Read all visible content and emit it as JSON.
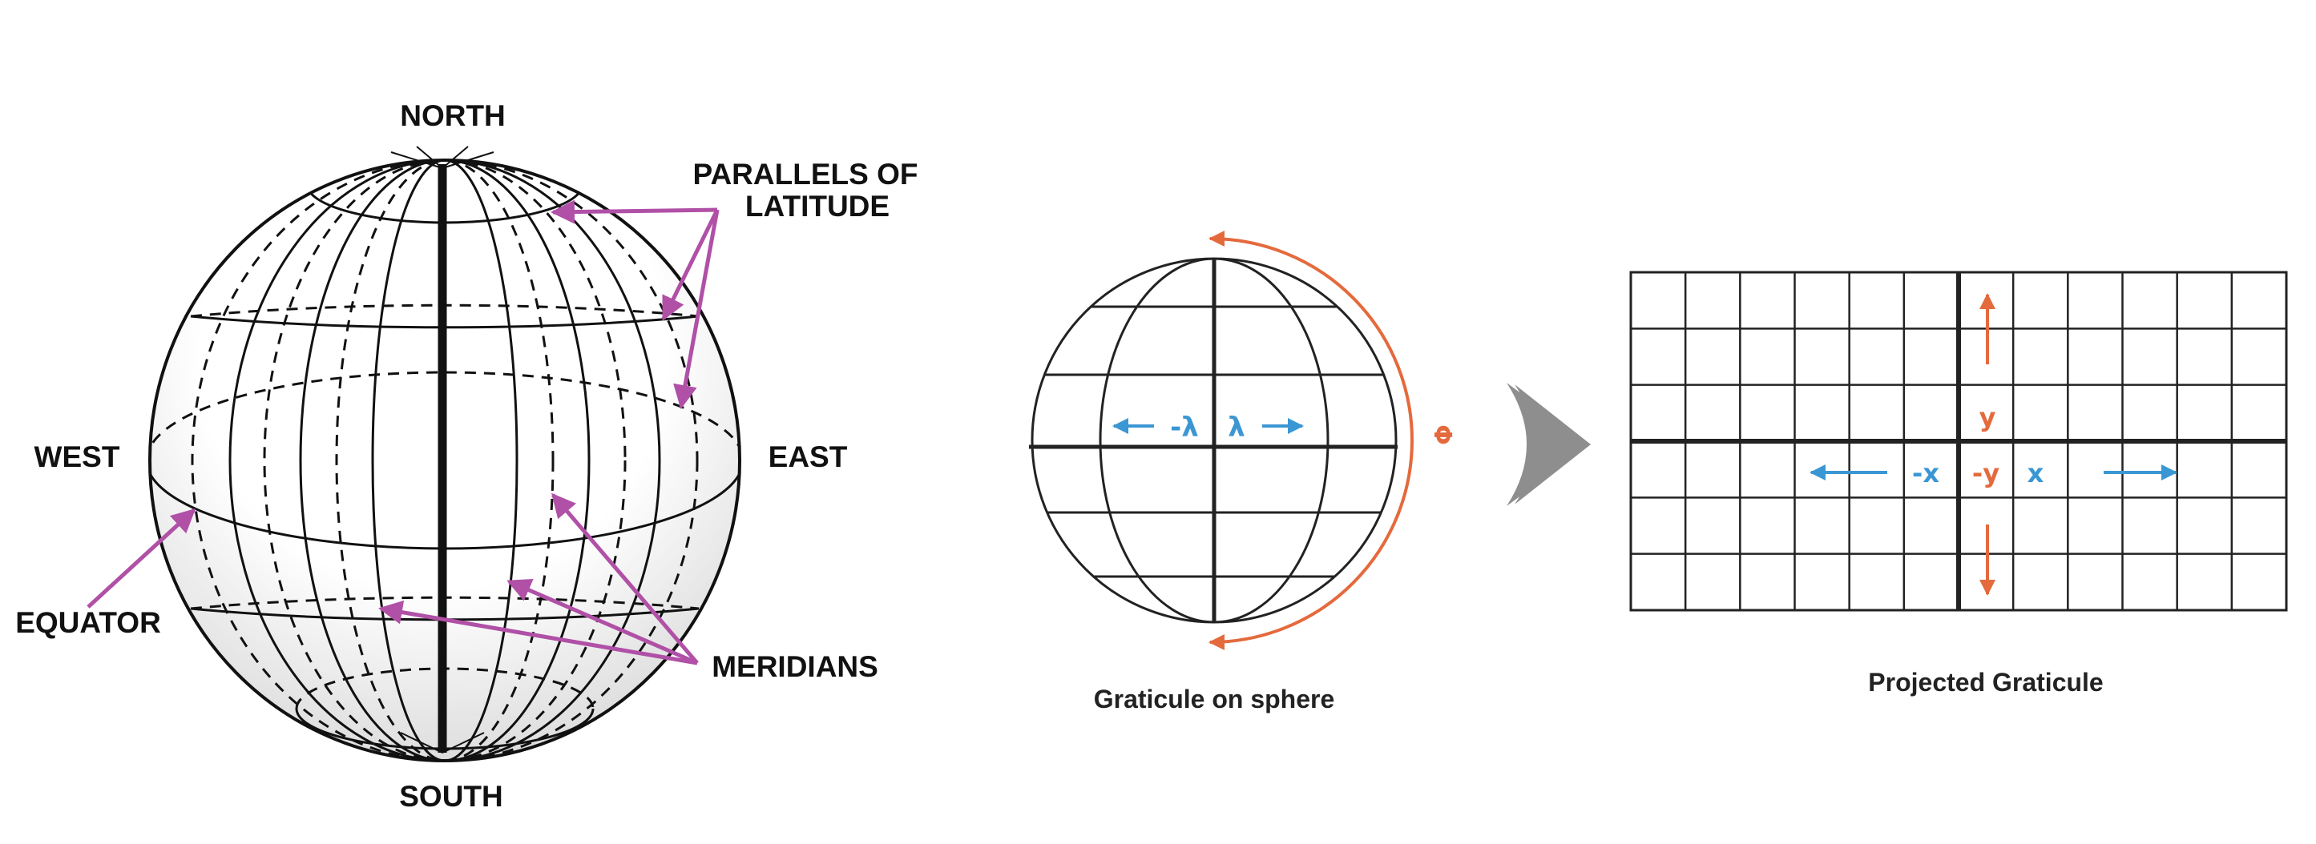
{
  "globe": {
    "north": "NORTH",
    "south": "SOUTH",
    "west": "WEST",
    "east": "EAST",
    "equator": "EQUATOR",
    "parallels_line1": "PARALLELS OF",
    "parallels_line2": "LATITUDE",
    "meridians": "MERIDIANS"
  },
  "sphere": {
    "caption": "Graticule on sphere",
    "neg_lambda": "-λ",
    "lambda": "λ",
    "phi": "Φ"
  },
  "projected": {
    "caption": "Projected Graticule",
    "y": "y",
    "neg_y": "-y",
    "neg_x": "-x",
    "x": "x"
  },
  "colors": {
    "arrow_magenta": "#b050a6",
    "blue": "#3b97d3",
    "orange": "#e46a3d",
    "grey_arrow": "#8e8e8e"
  }
}
